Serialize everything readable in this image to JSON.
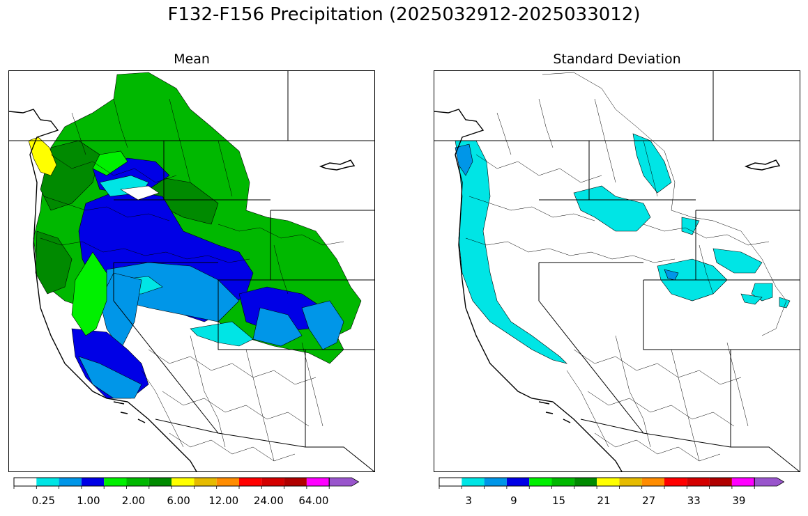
{
  "figure": {
    "title": "F132-F156 Precipitation (2025032912-2025033012)"
  },
  "panels": {
    "left": {
      "title": "Mean"
    },
    "right": {
      "title": "Standard Deviation"
    }
  },
  "colorbars": {
    "colors": [
      "#ffffff",
      "#00e5e5",
      "#0096e8",
      "#0000e6",
      "#00f000",
      "#00b800",
      "#008a00",
      "#ffff00",
      "#e6bb00",
      "#ff8c00",
      "#ff0000",
      "#d40000",
      "#b00000",
      "#ff00ff",
      "#9955cc"
    ],
    "left": {
      "tick_labels": [
        "0.25",
        "1.00",
        "2.00",
        "6.00",
        "12.00",
        "24.00",
        "64.00"
      ]
    },
    "right": {
      "tick_labels": [
        "3",
        "9",
        "15",
        "21",
        "27",
        "33",
        "39"
      ]
    }
  }
}
